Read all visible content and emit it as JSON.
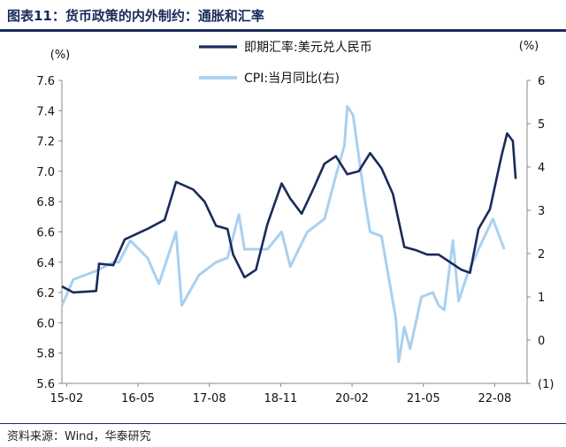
{
  "header": {
    "title": "图表11：货币政策的内外制约：通胀和汇率"
  },
  "footer": {
    "source": "资料来源：Wind，华泰研究"
  },
  "colors": {
    "title": "#1a2a5a",
    "series_fx": "#1a2a5a",
    "series_cpi": "#a9d0f0"
  },
  "chart_data": {
    "type": "line",
    "left_axis": {
      "unit_label": "(%)",
      "ylim": [
        5.6,
        7.6
      ],
      "ticks": [
        "7.6",
        "7.4",
        "7.2",
        "7.0",
        "6.8",
        "6.6",
        "6.4",
        "6.2",
        "6.0",
        "5.8",
        "5.6"
      ]
    },
    "right_axis": {
      "unit_label": "(%)",
      "ylim": [
        -1,
        6
      ],
      "ticks": [
        "6",
        "5",
        "4",
        "3",
        "2",
        "1",
        "0",
        "(1)"
      ]
    },
    "x_axis": {
      "ticks": [
        "15-02",
        "16-05",
        "17-08",
        "18-11",
        "20-02",
        "21-05",
        "22-08"
      ]
    },
    "series": [
      {
        "name": "即期汇率:美元兑人民币",
        "axis": "left",
        "points": [
          [
            2015.0,
            6.24
          ],
          [
            2015.2,
            6.2
          ],
          [
            2015.6,
            6.21
          ],
          [
            2015.65,
            6.39
          ],
          [
            2015.9,
            6.38
          ],
          [
            2016.1,
            6.55
          ],
          [
            2016.5,
            6.62
          ],
          [
            2016.8,
            6.68
          ],
          [
            2017.0,
            6.93
          ],
          [
            2017.3,
            6.88
          ],
          [
            2017.5,
            6.8
          ],
          [
            2017.7,
            6.64
          ],
          [
            2017.9,
            6.62
          ],
          [
            2018.0,
            6.45
          ],
          [
            2018.2,
            6.3
          ],
          [
            2018.4,
            6.35
          ],
          [
            2018.6,
            6.65
          ],
          [
            2018.85,
            6.92
          ],
          [
            2019.0,
            6.82
          ],
          [
            2019.2,
            6.72
          ],
          [
            2019.4,
            6.88
          ],
          [
            2019.6,
            7.05
          ],
          [
            2019.8,
            7.1
          ],
          [
            2020.0,
            6.98
          ],
          [
            2020.2,
            7.0
          ],
          [
            2020.4,
            7.12
          ],
          [
            2020.6,
            7.02
          ],
          [
            2020.8,
            6.85
          ],
          [
            2021.0,
            6.5
          ],
          [
            2021.2,
            6.48
          ],
          [
            2021.4,
            6.45
          ],
          [
            2021.6,
            6.45
          ],
          [
            2021.8,
            6.4
          ],
          [
            2022.0,
            6.35
          ],
          [
            2022.15,
            6.33
          ],
          [
            2022.3,
            6.62
          ],
          [
            2022.5,
            6.75
          ],
          [
            2022.7,
            7.1
          ],
          [
            2022.8,
            7.25
          ],
          [
            2022.9,
            7.2
          ],
          [
            2022.95,
            6.95
          ]
        ]
      },
      {
        "name": "CPI:当月同比(右)",
        "axis": "right",
        "points": [
          [
            2015.0,
            0.8
          ],
          [
            2015.2,
            1.4
          ],
          [
            2015.6,
            1.6
          ],
          [
            2015.9,
            1.8
          ],
          [
            2016.0,
            1.8
          ],
          [
            2016.2,
            2.3
          ],
          [
            2016.5,
            1.9
          ],
          [
            2016.7,
            1.3
          ],
          [
            2016.9,
            2.1
          ],
          [
            2017.0,
            2.5
          ],
          [
            2017.1,
            0.8
          ],
          [
            2017.4,
            1.5
          ],
          [
            2017.7,
            1.8
          ],
          [
            2017.9,
            1.9
          ],
          [
            2018.1,
            2.9
          ],
          [
            2018.2,
            2.1
          ],
          [
            2018.6,
            2.1
          ],
          [
            2018.85,
            2.5
          ],
          [
            2019.0,
            1.7
          ],
          [
            2019.3,
            2.5
          ],
          [
            2019.6,
            2.8
          ],
          [
            2019.8,
            3.8
          ],
          [
            2019.95,
            4.5
          ],
          [
            2020.0,
            5.4
          ],
          [
            2020.1,
            5.2
          ],
          [
            2020.3,
            3.3
          ],
          [
            2020.4,
            2.5
          ],
          [
            2020.6,
            2.4
          ],
          [
            2020.85,
            0.5
          ],
          [
            2020.9,
            -0.5
          ],
          [
            2021.0,
            0.3
          ],
          [
            2021.1,
            -0.2
          ],
          [
            2021.3,
            1.0
          ],
          [
            2021.5,
            1.1
          ],
          [
            2021.6,
            0.8
          ],
          [
            2021.7,
            0.7
          ],
          [
            2021.85,
            2.3
          ],
          [
            2021.95,
            0.9
          ],
          [
            2022.1,
            1.5
          ],
          [
            2022.3,
            2.1
          ],
          [
            2022.55,
            2.8
          ],
          [
            2022.75,
            2.1
          ]
        ]
      }
    ]
  }
}
